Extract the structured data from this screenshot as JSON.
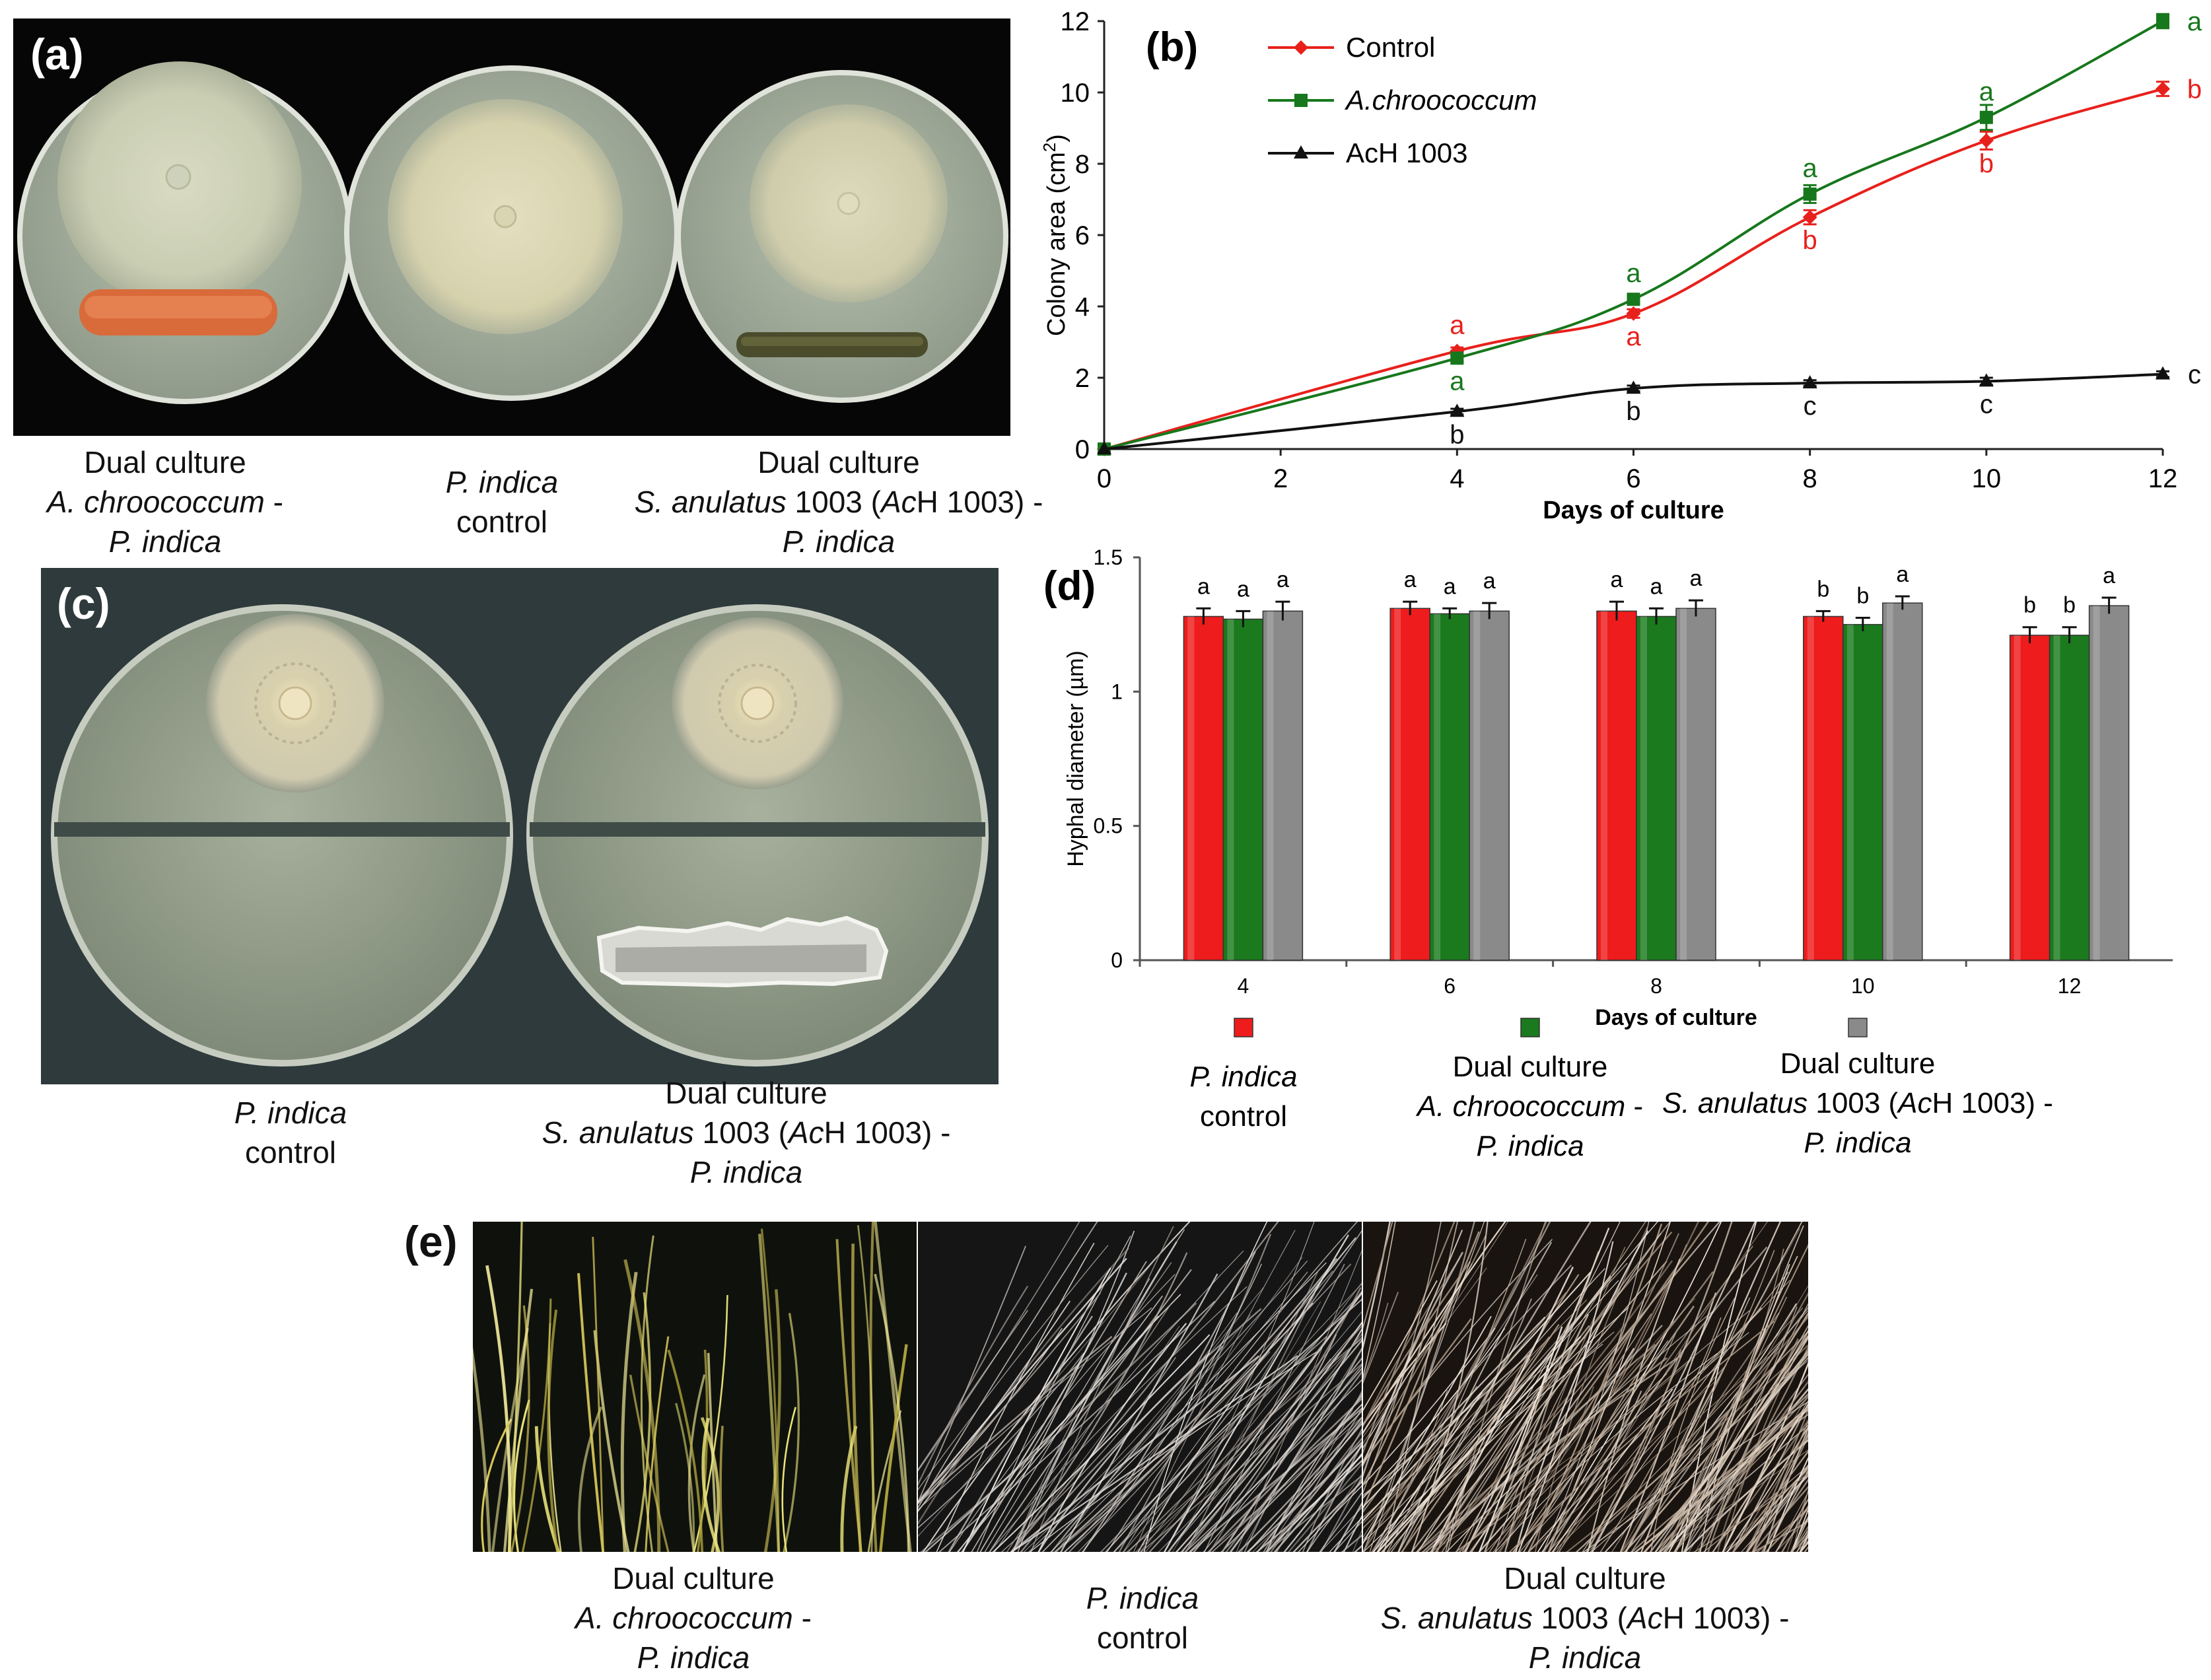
{
  "panels": {
    "a": {
      "label": "(a)",
      "captions": [
        {
          "lines": [
            {
              "parts": [
                {
                  "t": "Dual culture",
                  "i": false
                }
              ]
            },
            {
              "parts": [
                {
                  "t": "A. chroococcum",
                  "i": true
                },
                {
                  "t": " -",
                  "i": false
                }
              ]
            },
            {
              "parts": [
                {
                  "t": "P. indica",
                  "i": true
                }
              ]
            }
          ]
        },
        {
          "lines": [
            {
              "parts": [
                {
                  "t": "P. indica",
                  "i": true
                }
              ]
            },
            {
              "parts": [
                {
                  "t": "control",
                  "i": false
                }
              ]
            }
          ]
        },
        {
          "lines": [
            {
              "parts": [
                {
                  "t": "Dual culture",
                  "i": false
                }
              ]
            },
            {
              "parts": [
                {
                  "t": "S. anulatus",
                  "i": true
                },
                {
                  "t": " 1003 (",
                  "i": false
                },
                {
                  "t": "Ac",
                  "i": true
                },
                {
                  "t": "H 1003) -",
                  "i": false
                }
              ]
            },
            {
              "parts": [
                {
                  "t": "P. indica",
                  "i": true
                }
              ]
            }
          ]
        }
      ]
    },
    "c": {
      "label": "(c)",
      "captions": [
        {
          "lines": [
            {
              "parts": [
                {
                  "t": "P. indica",
                  "i": true
                }
              ]
            },
            {
              "parts": [
                {
                  "t": "control",
                  "i": false
                }
              ]
            }
          ]
        },
        {
          "lines": [
            {
              "parts": [
                {
                  "t": "Dual culture",
                  "i": false
                }
              ]
            },
            {
              "parts": [
                {
                  "t": "S. anulatus",
                  "i": true
                },
                {
                  "t": " 1003 (",
                  "i": false
                },
                {
                  "t": "Ac",
                  "i": true
                },
                {
                  "t": "H 1003) -",
                  "i": false
                }
              ]
            },
            {
              "parts": [
                {
                  "t": "P. indica",
                  "i": true
                }
              ]
            }
          ]
        }
      ]
    },
    "e": {
      "label": "(e)",
      "captions": [
        {
          "lines": [
            {
              "parts": [
                {
                  "t": "Dual culture",
                  "i": false
                }
              ]
            },
            {
              "parts": [
                {
                  "t": "A. chroococcum",
                  "i": true
                },
                {
                  "t": " -",
                  "i": false
                }
              ]
            },
            {
              "parts": [
                {
                  "t": "P. indica",
                  "i": true
                }
              ]
            }
          ]
        },
        {
          "lines": [
            {
              "parts": [
                {
                  "t": "P. indica",
                  "i": true
                }
              ]
            },
            {
              "parts": [
                {
                  "t": "control",
                  "i": false
                }
              ]
            }
          ]
        },
        {
          "lines": [
            {
              "parts": [
                {
                  "t": "Dual culture",
                  "i": false
                }
              ]
            },
            {
              "parts": [
                {
                  "t": "S. anulatus",
                  "i": true
                },
                {
                  "t": " 1003 (",
                  "i": false
                },
                {
                  "t": "Ac",
                  "i": true
                },
                {
                  "t": "H 1003) -",
                  "i": false
                }
              ]
            },
            {
              "parts": [
                {
                  "t": "P. indica",
                  "i": true
                }
              ]
            }
          ]
        }
      ]
    }
  },
  "chart_data": [
    {
      "panel_label": "(b)",
      "type": "line",
      "xlabel": "Days of culture",
      "ylabel_parts": [
        {
          "t": "Colony area (cm"
        },
        {
          "t": "2",
          "sup": true
        },
        {
          "t": ")"
        }
      ],
      "x": [
        0,
        4,
        6,
        8,
        10,
        12
      ],
      "xticks": [
        0,
        2,
        4,
        6,
        8,
        10,
        12
      ],
      "yticks": [
        0,
        2,
        4,
        6,
        8,
        10,
        12
      ],
      "xlim": [
        0,
        12
      ],
      "ylim": [
        0,
        12
      ],
      "grid": false,
      "legend_position": "top-left",
      "series": [
        {
          "name": "Control",
          "name_italic": false,
          "color": "#e8201c",
          "marker": "diamond",
          "values": [
            0,
            2.75,
            3.8,
            6.5,
            8.65,
            10.1
          ],
          "errors": [
            0,
            0.1,
            0.12,
            0.2,
            0.25,
            0.2
          ],
          "letters": [
            "",
            "a",
            "a",
            "b",
            "b",
            "b"
          ],
          "letter_pos": [
            "",
            "above",
            "below",
            "below",
            "below",
            "right"
          ]
        },
        {
          "name": "A.chroococcum",
          "name_italic": true,
          "color": "#17771c",
          "marker": "square",
          "values": [
            0,
            2.55,
            4.2,
            7.15,
            9.3,
            12.0
          ],
          "errors": [
            0,
            0.1,
            0.15,
            0.25,
            0.35,
            0.2
          ],
          "letters": [
            "",
            "a",
            "a",
            "a",
            "a",
            "a"
          ],
          "letter_pos": [
            "",
            "below",
            "above",
            "above",
            "above",
            "right"
          ]
        },
        {
          "name": "AcH 1003",
          "name_italic": false,
          "color": "#111111",
          "marker": "triangle",
          "values": [
            0,
            1.05,
            1.7,
            1.85,
            1.9,
            2.1
          ],
          "errors": [
            0,
            0.08,
            0.08,
            0.08,
            0.1,
            0.08
          ],
          "letters": [
            "",
            "b",
            "b",
            "c",
            "c",
            "c"
          ],
          "letter_pos": [
            "",
            "below",
            "below",
            "below",
            "below",
            "right"
          ]
        }
      ]
    },
    {
      "panel_label": "(d)",
      "type": "bar",
      "xlabel": "Days of culture",
      "ylabel": "Hyphal diameter (µm)",
      "categories": [
        "4",
        "6",
        "8",
        "10",
        "12"
      ],
      "yticks": [
        "0",
        "0.5",
        "1",
        "1.5"
      ],
      "ytick_values": [
        0,
        0.5,
        1,
        1.5
      ],
      "ylim": [
        0,
        1.5
      ],
      "grid": false,
      "legend_position": "bottom",
      "series": [
        {
          "color": "#ee1c1c",
          "values": [
            1.28,
            1.31,
            1.3,
            1.28,
            1.21
          ],
          "errors": [
            0.03,
            0.025,
            0.035,
            0.02,
            0.03
          ],
          "letters": [
            "a",
            "a",
            "a",
            "b",
            "b"
          ],
          "legend_lines": [
            {
              "parts": [
                {
                  "t": "P. indica",
                  "i": true
                }
              ]
            },
            {
              "parts": [
                {
                  "t": "control",
                  "i": false
                }
              ]
            }
          ]
        },
        {
          "color": "#1a7a1d",
          "values": [
            1.27,
            1.29,
            1.28,
            1.25,
            1.21
          ],
          "errors": [
            0.03,
            0.02,
            0.03,
            0.025,
            0.03
          ],
          "letters": [
            "a",
            "a",
            "a",
            "b",
            "b"
          ],
          "legend_lines": [
            {
              "parts": [
                {
                  "t": "Dual culture",
                  "i": false
                }
              ]
            },
            {
              "parts": [
                {
                  "t": "A. chroococcum",
                  "i": true
                },
                {
                  "t": " -",
                  "i": false
                }
              ]
            },
            {
              "parts": [
                {
                  "t": "P. indica",
                  "i": true
                }
              ]
            }
          ]
        },
        {
          "color": "#8a8a8a",
          "values": [
            1.3,
            1.3,
            1.31,
            1.33,
            1.32
          ],
          "errors": [
            0.035,
            0.03,
            0.03,
            0.025,
            0.03
          ],
          "letters": [
            "a",
            "a",
            "a",
            "a",
            "a"
          ],
          "legend_lines": [
            {
              "parts": [
                {
                  "t": "Dual culture",
                  "i": false
                }
              ]
            },
            {
              "parts": [
                {
                  "t": "S. anulatus",
                  "i": true
                },
                {
                  "t": " 1003 (",
                  "i": false
                },
                {
                  "t": "Ac",
                  "i": true
                },
                {
                  "t": "H 1003) -",
                  "i": false
                }
              ]
            },
            {
              "parts": [
                {
                  "t": "P. indica",
                  "i": true
                }
              ]
            }
          ]
        }
      ]
    }
  ]
}
